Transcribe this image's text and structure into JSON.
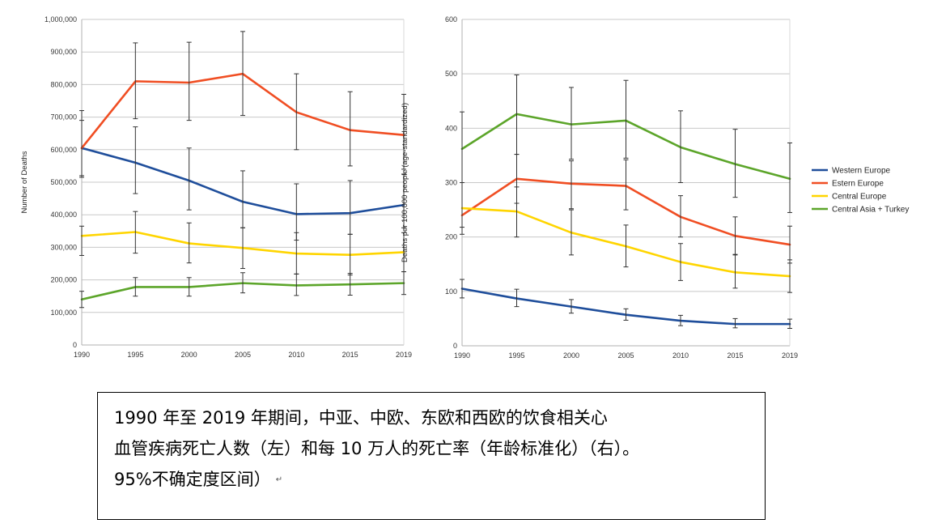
{
  "chart_data": [
    {
      "type": "line",
      "ylabel": "Number of Deaths",
      "x": [
        1990,
        1995,
        2000,
        2005,
        2010,
        2015,
        2019
      ],
      "ylim": [
        0,
        1000000
      ],
      "yticks": [
        0,
        100000,
        200000,
        300000,
        400000,
        500000,
        600000,
        700000,
        800000,
        900000,
        1000000
      ],
      "ytick_labels": [
        "0",
        "100,000",
        "200,000",
        "300,000",
        "400,000",
        "500,000",
        "600,000",
        "700,000",
        "800,000",
        "900,000",
        "1,000,000"
      ],
      "grid": "horizontal",
      "error_bars": true,
      "series": [
        {
          "name": "Western Europe",
          "color": "#1f4e9b",
          "values": [
            605000,
            560000,
            505000,
            440000,
            402000,
            405000,
            430000
          ],
          "lower": [
            515000,
            465000,
            415000,
            360000,
            322000,
            340000,
            360000
          ],
          "upper": [
            690000,
            670000,
            605000,
            535000,
            495000,
            505000,
            525000
          ]
        },
        {
          "name": "Estern Europe",
          "color": "#f04e23",
          "values": [
            605000,
            810000,
            806000,
            833000,
            715000,
            660000,
            645000
          ],
          "lower": [
            520000,
            695000,
            690000,
            705000,
            600000,
            550000,
            540000
          ],
          "upper": [
            720000,
            928000,
            930000,
            963000,
            833000,
            778000,
            770000
          ]
        },
        {
          "name": "Central Europe",
          "color": "#ffd500",
          "values": [
            335000,
            347000,
            312000,
            298000,
            281000,
            277000,
            285000
          ],
          "lower": [
            275000,
            282000,
            252000,
            235000,
            218000,
            215000,
            225000
          ],
          "upper": [
            365000,
            410000,
            375000,
            360000,
            345000,
            340000,
            345000
          ]
        },
        {
          "name": "Central Asia + Turkey",
          "color": "#5ca52a",
          "values": [
            140000,
            178000,
            178000,
            190000,
            183000,
            186000,
            190000
          ],
          "lower": [
            115000,
            150000,
            150000,
            160000,
            152000,
            153000,
            155000
          ],
          "upper": [
            165000,
            207000,
            207000,
            222000,
            218000,
            220000,
            225000
          ]
        }
      ]
    },
    {
      "type": "line",
      "ylabel": "Deaths per 100,000 people (age-standardized)",
      "x": [
        1990,
        1995,
        2000,
        2005,
        2010,
        2015,
        2019
      ],
      "ylim": [
        0,
        600
      ],
      "yticks": [
        0,
        100,
        200,
        300,
        400,
        500,
        600
      ],
      "ytick_labels": [
        "0",
        "100",
        "200",
        "300",
        "400",
        "500",
        "600"
      ],
      "grid": "horizontal",
      "error_bars": true,
      "legend": "right",
      "series": [
        {
          "name": "Western Europe",
          "color": "#1f4e9b",
          "values": [
            105,
            87,
            72,
            57,
            46,
            40,
            40
          ],
          "lower": [
            88,
            72,
            60,
            47,
            37,
            33,
            32
          ],
          "upper": [
            122,
            104,
            85,
            68,
            56,
            50,
            49
          ]
        },
        {
          "name": "Estern Europe",
          "color": "#f04e23",
          "values": [
            240,
            307,
            298,
            294,
            237,
            202,
            186
          ],
          "lower": [
            205,
            262,
            252,
            250,
            200,
            168,
            152
          ],
          "upper": [
            300,
            352,
            340,
            342,
            276,
            237,
            220
          ]
        },
        {
          "name": "Central Europe",
          "color": "#ffd500",
          "values": [
            253,
            247,
            208,
            183,
            154,
            135,
            128
          ],
          "lower": [
            218,
            200,
            167,
            145,
            120,
            106,
            98
          ],
          "upper": [
            300,
            292,
            250,
            222,
            188,
            167,
            158
          ]
        },
        {
          "name": "Central Asia + Turkey",
          "color": "#5ca52a",
          "values": [
            362,
            426,
            407,
            414,
            365,
            334,
            307
          ],
          "lower": [
            300,
            352,
            343,
            345,
            300,
            273,
            245
          ],
          "upper": [
            430,
            498,
            475,
            488,
            432,
            398,
            373
          ]
        }
      ]
    }
  ],
  "caption": {
    "line1": "1990 年至 2019 年期间，中亚、中欧、东欧和西欧的饮食相关心",
    "line2": "血管疾病死亡人数（左）和每 10 万人的死亡率（年龄标准化）（右）。",
    "line3": "95%不确定度区间）",
    "mark": "↵"
  }
}
